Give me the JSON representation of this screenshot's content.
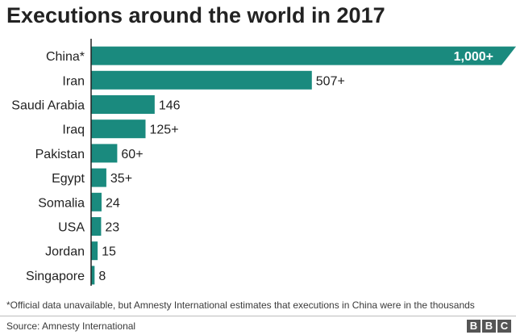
{
  "chart_data": {
    "type": "bar",
    "orientation": "horizontal",
    "title": "Executions around the world in 2017",
    "categories": [
      "China*",
      "Iran",
      "Saudi Arabia",
      "Iraq",
      "Pakistan",
      "Egypt",
      "Somalia",
      "USA",
      "Jordan",
      "Singapore"
    ],
    "values": [
      1000,
      507,
      146,
      125,
      60,
      35,
      24,
      23,
      15,
      8
    ],
    "value_labels": [
      "1,000+",
      "507+",
      "146",
      "125+",
      "60+",
      "35+",
      "24",
      "23",
      "15",
      "8"
    ],
    "truncated": [
      true,
      false,
      false,
      false,
      false,
      false,
      false,
      false,
      false,
      false
    ],
    "xlim": [
      0,
      800
    ],
    "xlabel": "",
    "ylabel": "",
    "grid": false,
    "bar_color": "#1a8a7e"
  },
  "footnote": "*Official data unavailable, but Amnesty International estimates that executions in China were in the thousands",
  "source": "Source: Amnesty International",
  "logo": [
    "B",
    "B",
    "C"
  ]
}
